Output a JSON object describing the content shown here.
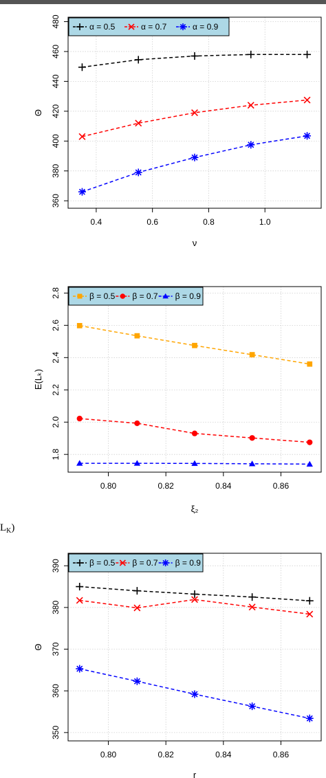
{
  "cropped_text": {
    "main": "L",
    "sub": "K",
    "tail": ")"
  },
  "chart_data": [
    {
      "type": "line",
      "title": "",
      "xlabel": "ν",
      "ylabel": "Θ",
      "xlim": [
        0.3,
        1.2
      ],
      "ylim": [
        355,
        483
      ],
      "xticks": [
        0.4,
        0.6,
        0.8,
        1.0
      ],
      "xtick_labels": [
        "0.4",
        "0.6",
        "0.8",
        "1.0"
      ],
      "yticks": [
        360,
        380,
        400,
        420,
        440,
        460,
        480
      ],
      "ytick_labels": [
        "360",
        "380",
        "400",
        "420",
        "440",
        "460",
        "480"
      ],
      "grid": true,
      "legend_position": "top-left",
      "legend_bg": "#add8e6",
      "x": [
        0.35,
        0.55,
        0.75,
        0.95,
        1.15
      ],
      "series": [
        {
          "name": "α = 0.5",
          "marker": "plus",
          "color": "#000000",
          "values": [
            449.5,
            454.5,
            457.0,
            458.0,
            458.0
          ]
        },
        {
          "name": "α = 0.7",
          "marker": "cross",
          "color": "#ff0000",
          "values": [
            403.0,
            412.0,
            419.0,
            424.0,
            427.5
          ]
        },
        {
          "name": "α = 0.9",
          "marker": "asterisk",
          "color": "#0000ff",
          "values": [
            366.0,
            379.0,
            389.0,
            397.5,
            403.5
          ]
        }
      ]
    },
    {
      "type": "line",
      "title": "",
      "xlabel": "ξ₂",
      "ylabel": "E(Lₖ)",
      "xlim": [
        0.786,
        0.874
      ],
      "ylim": [
        1.69,
        2.84
      ],
      "xticks": [
        0.8,
        0.82,
        0.84,
        0.86
      ],
      "xtick_labels": [
        "0.80",
        "0.82",
        "0.84",
        "0.86"
      ],
      "yticks": [
        1.8,
        2.0,
        2.2,
        2.4,
        2.6,
        2.8
      ],
      "ytick_labels": [
        "1.8",
        "2.0",
        "2.2",
        "2.4",
        "2.6",
        "2.8"
      ],
      "grid": true,
      "legend_position": "top-left",
      "legend_bg": "#add8e6",
      "x": [
        0.79,
        0.81,
        0.83,
        0.85,
        0.87
      ],
      "series": [
        {
          "name": "β = 0.5",
          "marker": "square",
          "color": "#ffa500",
          "values": [
            2.598,
            2.535,
            2.475,
            2.418,
            2.36
          ]
        },
        {
          "name": "β = 0.7",
          "marker": "circle",
          "color": "#ff0000",
          "values": [
            2.022,
            1.993,
            1.93,
            1.902,
            1.875
          ]
        },
        {
          "name": "β = 0.9",
          "marker": "triangle",
          "color": "#0000ff",
          "values": [
            1.745,
            1.745,
            1.744,
            1.742,
            1.74
          ]
        }
      ]
    },
    {
      "type": "line",
      "title": "",
      "xlabel": "r",
      "ylabel": "Θ",
      "xlim": [
        0.786,
        0.874
      ],
      "ylim": [
        348,
        393
      ],
      "xticks": [
        0.8,
        0.82,
        0.84,
        0.86
      ],
      "xtick_labels": [
        "0.80",
        "0.82",
        "0.84",
        "0.86"
      ],
      "yticks": [
        350,
        360,
        370,
        380,
        390
      ],
      "ytick_labels": [
        "350",
        "360",
        "370",
        "380",
        "390"
      ],
      "grid": true,
      "legend_position": "top-left",
      "legend_bg": "#add8e6",
      "x": [
        0.79,
        0.81,
        0.83,
        0.85,
        0.87
      ],
      "series": [
        {
          "name": "β = 0.5",
          "marker": "plus",
          "color": "#000000",
          "values": [
            385.0,
            384.0,
            383.2,
            382.5,
            381.6
          ]
        },
        {
          "name": "β = 0.7",
          "marker": "cross",
          "color": "#ff0000",
          "values": [
            381.7,
            379.9,
            381.9,
            380.1,
            378.4
          ]
        },
        {
          "name": "β = 0.9",
          "marker": "asterisk",
          "color": "#0000ff",
          "values": [
            365.3,
            362.3,
            359.2,
            356.3,
            353.4
          ]
        }
      ]
    }
  ]
}
